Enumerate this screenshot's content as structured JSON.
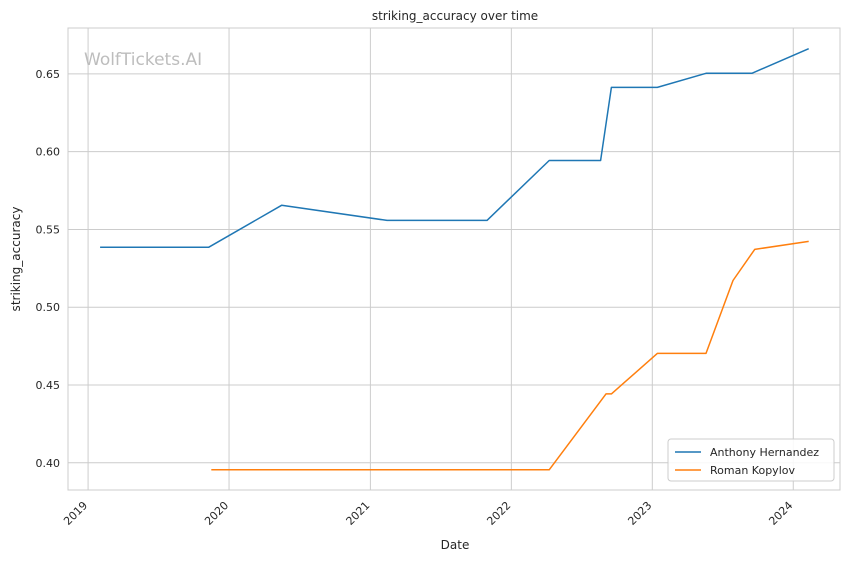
{
  "watermark": "WolfTickets.AI",
  "chart_data": {
    "type": "line",
    "title": "striking_accuracy over time",
    "xlabel": "Date",
    "ylabel": "striking_accuracy",
    "xlim": [
      "2018-11-10",
      "2024-05-01"
    ],
    "ylim": [
      0.3825,
      0.6795
    ],
    "x_ticks": [
      "2019-01-01",
      "2020-01-01",
      "2021-01-01",
      "2022-01-01",
      "2023-01-01",
      "2024-01-01"
    ],
    "x_tick_labels": [
      "2019",
      "2020",
      "2021",
      "2022",
      "2023",
      "2024"
    ],
    "y_ticks": [
      0.4,
      0.45,
      0.5,
      0.55,
      0.6,
      0.65
    ],
    "y_tick_labels": [
      "0.40",
      "0.45",
      "0.50",
      "0.55",
      "0.60",
      "0.65"
    ],
    "grid": true,
    "legend_position": "bottom-right",
    "series": [
      {
        "name": "Anthony Hernandez",
        "color": "#1f77b4",
        "points": [
          {
            "x": "2019-02-01",
            "y": 0.5385
          },
          {
            "x": "2019-11-09",
            "y": 0.5385
          },
          {
            "x": "2020-05-16",
            "y": 0.5655
          },
          {
            "x": "2021-02-13",
            "y": 0.5558
          },
          {
            "x": "2021-10-30",
            "y": 0.5558
          },
          {
            "x": "2022-04-09",
            "y": 0.5943
          },
          {
            "x": "2022-08-20",
            "y": 0.5943
          },
          {
            "x": "2022-09-17",
            "y": 0.6413
          },
          {
            "x": "2023-01-14",
            "y": 0.6413
          },
          {
            "x": "2023-05-20",
            "y": 0.6504
          },
          {
            "x": "2023-09-16",
            "y": 0.6504
          },
          {
            "x": "2024-02-10",
            "y": 0.6662
          }
        ]
      },
      {
        "name": "Roman Kopylov",
        "color": "#ff7f0e",
        "points": [
          {
            "x": "2019-11-16",
            "y": 0.3955
          },
          {
            "x": "2022-04-09",
            "y": 0.3955
          },
          {
            "x": "2022-09-03",
            "y": 0.4443
          },
          {
            "x": "2022-09-17",
            "y": 0.4443
          },
          {
            "x": "2023-01-14",
            "y": 0.4703
          },
          {
            "x": "2023-05-20",
            "y": 0.4703
          },
          {
            "x": "2023-07-29",
            "y": 0.5172
          },
          {
            "x": "2023-09-23",
            "y": 0.5372
          },
          {
            "x": "2024-02-10",
            "y": 0.5423
          }
        ]
      }
    ]
  }
}
